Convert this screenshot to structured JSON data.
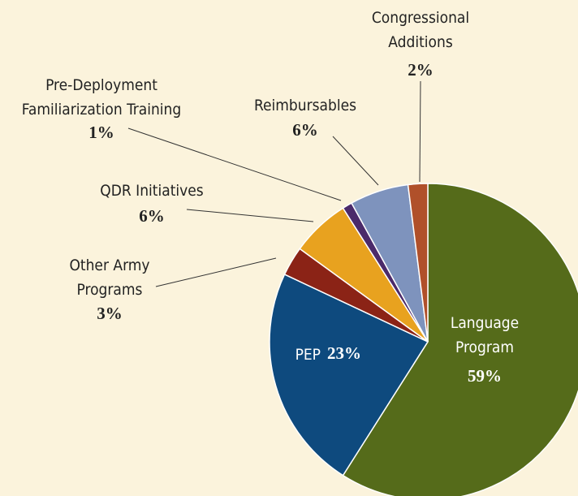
{
  "chart_data": {
    "type": "pie",
    "categories": [
      "Language\nProgram",
      "PEP",
      "Other Army\nPrograms",
      "QDR Initiatives",
      "Pre-Deployment\nFamiliarization Training",
      "Reimbursables",
      "Congressional\nAdditions"
    ],
    "values": [
      59,
      23,
      3,
      6,
      1,
      6,
      2
    ],
    "value_labels": [
      "59%",
      "23%",
      "3%",
      "6%",
      "1%",
      "6%",
      "2%"
    ],
    "colors": [
      "#556b1a",
      "#0e4a7e",
      "#8b2316",
      "#e8a21f",
      "#4b2a6a",
      "#7e93bd",
      "#b0502a"
    ]
  }
}
